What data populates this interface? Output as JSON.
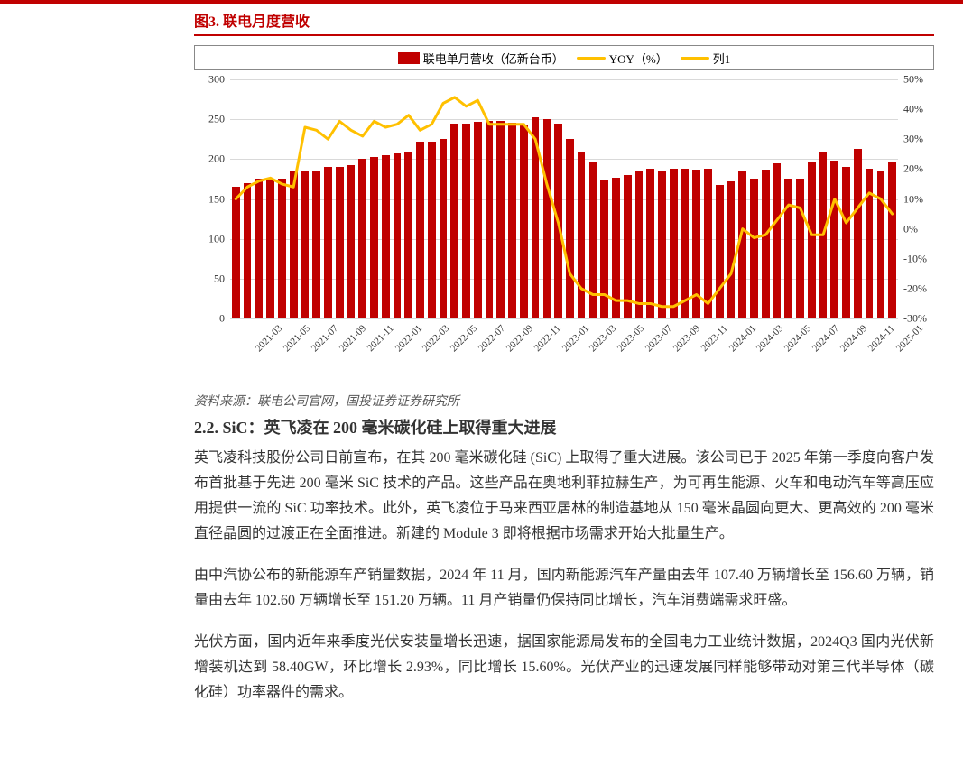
{
  "top_strip_color": "#c00000",
  "chart": {
    "title": "图3. 联电月度营收",
    "title_color": "#c00000",
    "title_fontsize": 16,
    "legend": {
      "items": [
        {
          "label": "联电单月营收（亿新台币）",
          "type": "bar",
          "color": "#c00000"
        },
        {
          "label": "YOY（%）",
          "type": "line",
          "color": "#ffc000"
        },
        {
          "label": "列1",
          "type": "line",
          "color": "#ffc000"
        }
      ],
      "border_color": "#888888"
    },
    "type": "bar+line",
    "background_color": "#ffffff",
    "grid_color": "#d9d9d9",
    "x_labels": [
      "2021-03",
      "2021-05",
      "2021-07",
      "2021-09",
      "2021-11",
      "2022-01",
      "2022-03",
      "2022-05",
      "2022-07",
      "2022-09",
      "2022-11",
      "2023-01",
      "2023-03",
      "2023-05",
      "2023-07",
      "2023-09",
      "2023-11",
      "2024-01",
      "2024-03",
      "2024-05",
      "2024-07",
      "2024-09",
      "2024-11",
      "2025-01"
    ],
    "x_label_fontsize": 11,
    "x_label_rotation": -45,
    "bar_series": {
      "name": "联电单月营收（亿新台币）",
      "color": "#c00000",
      "values": [
        165,
        170,
        175,
        175,
        176,
        185,
        186,
        186,
        190,
        190,
        192,
        200,
        203,
        205,
        207,
        210,
        222,
        222,
        225,
        244,
        244,
        247,
        248,
        248,
        246,
        243,
        253,
        250,
        244,
        225,
        210,
        196,
        173,
        177,
        180,
        186,
        188,
        185,
        188,
        188,
        187,
        188,
        168,
        172,
        185,
        175,
        187,
        195,
        175,
        176,
        196,
        208,
        198,
        190,
        213,
        188,
        186,
        197
      ],
      "bar_width_ratio": 0.68
    },
    "line_series": {
      "name": "YOY（%）",
      "color": "#ffc000",
      "stroke_width": 3,
      "values": [
        10,
        14,
        16,
        17,
        15,
        14,
        34,
        33,
        30,
        36,
        33,
        31,
        36,
        34,
        35,
        38,
        33,
        35,
        42,
        44,
        41,
        43,
        35,
        35,
        35,
        35,
        30,
        15,
        2,
        -15,
        -20,
        -22,
        -22,
        -24,
        -24,
        -25,
        -25,
        -26,
        -26,
        -24,
        -22,
        -25,
        -20,
        -15,
        0,
        -3,
        -2,
        3,
        8,
        7,
        -2,
        -2,
        10,
        2,
        7,
        12,
        10,
        5
      ]
    },
    "y_left": {
      "min": 0,
      "max": 300,
      "step": 50,
      "ticks": [
        0,
        50,
        100,
        150,
        200,
        250,
        300
      ]
    },
    "y_right": {
      "min": -30,
      "max": 50,
      "step": 10,
      "ticks": [
        "-30%",
        "-20%",
        "-10%",
        "0%",
        "10%",
        "20%",
        "30%",
        "40%",
        "50%"
      ],
      "values": [
        -30,
        -20,
        -10,
        0,
        10,
        20,
        30,
        40,
        50
      ]
    },
    "x_visible_step": 2
  },
  "source": "资料来源：联电公司官网，国投证券证券研究所",
  "section_heading": "2.2. SiC：英飞凌在 200 毫米碳化硅上取得重大进展",
  "paragraphs": [
    "英飞凌科技股份公司日前宣布，在其 200 毫米碳化硅 (SiC) 上取得了重大进展。该公司已于 2025 年第一季度向客户发布首批基于先进 200 毫米 SiC 技术的产品。这些产品在奥地利菲拉赫生产，为可再生能源、火车和电动汽车等高压应用提供一流的 SiC 功率技术。此外，英飞凌位于马来西亚居林的制造基地从 150 毫米晶圆向更大、更高效的 200 毫米直径晶圆的过渡正在全面推进。新建的 Module 3 即将根据市场需求开始大批量生产。",
    "由中汽协公布的新能源车产销量数据，2024 年 11 月，国内新能源汽车产量由去年 107.40 万辆增长至 156.60 万辆，销量由去年 102.60 万辆增长至 151.20 万辆。11 月产销量仍保持同比增长，汽车消费端需求旺盛。",
    "光伏方面，国内近年来季度光伏安装量增长迅速，据国家能源局发布的全国电力工业统计数据，2024Q3 国内光伏新增装机达到 58.40GW，环比增长 2.93%，同比增长 15.60%。光伏产业的迅速发展同样能够带动对第三代半导体（碳化硅）功率器件的需求。"
  ]
}
